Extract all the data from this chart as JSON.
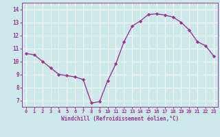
{
  "x": [
    0,
    1,
    2,
    3,
    4,
    5,
    6,
    7,
    8,
    9,
    10,
    11,
    12,
    13,
    14,
    15,
    16,
    17,
    18,
    19,
    20,
    21,
    22,
    23
  ],
  "y": [
    10.6,
    10.5,
    10.0,
    9.5,
    9.0,
    8.9,
    8.8,
    8.6,
    6.8,
    6.9,
    8.5,
    9.8,
    11.5,
    12.7,
    13.1,
    13.6,
    13.65,
    13.55,
    13.4,
    13.0,
    12.4,
    11.5,
    11.2,
    10.4
  ],
  "line_color": "#993399",
  "marker": "D",
  "marker_size": 2.2,
  "bg_color": "#cce8e8",
  "grid_color": "#ffffff",
  "xlabel": "Windchill (Refroidissement éolien,°C)",
  "xlabel_color": "#993399",
  "tick_color": "#993399",
  "ylabel_ticks": [
    7,
    8,
    9,
    10,
    11,
    12,
    13,
    14
  ],
  "xlim": [
    -0.5,
    23.5
  ],
  "ylim": [
    6.5,
    14.5
  ],
  "xticks": [
    0,
    1,
    2,
    3,
    4,
    5,
    6,
    7,
    8,
    9,
    10,
    11,
    12,
    13,
    14,
    15,
    16,
    17,
    18,
    19,
    20,
    21,
    22,
    23
  ],
  "line_width": 1.0
}
